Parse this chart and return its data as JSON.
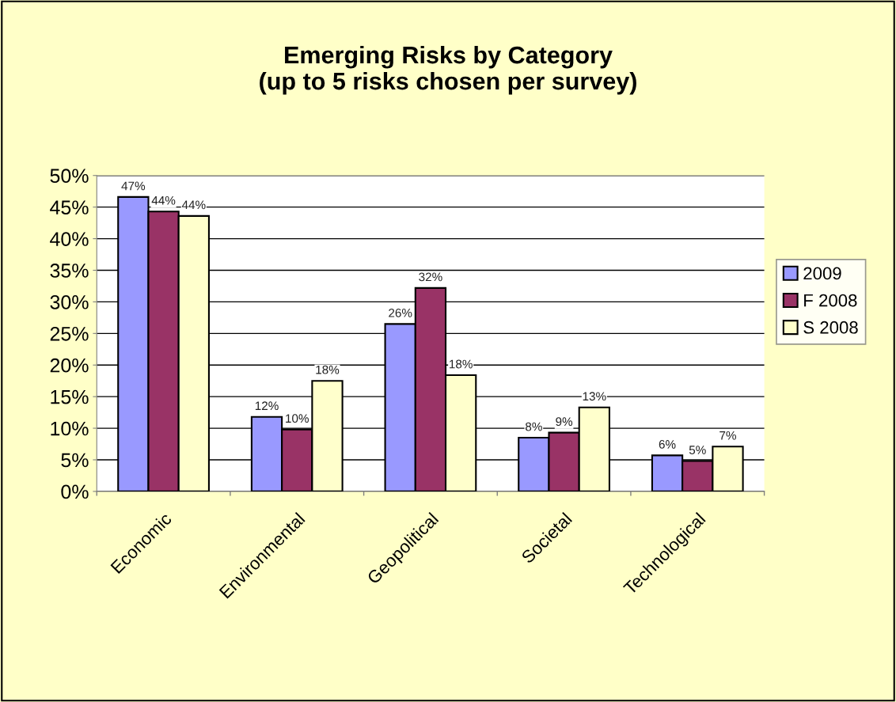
{
  "chart_data": {
    "type": "bar",
    "title": "Emerging Risks by Category\n(up to 5 risks chosen per survey)",
    "categories": [
      "Economic",
      "Environmental",
      "Geopolitical",
      "Societal",
      "Technological"
    ],
    "series": [
      {
        "name": "2009",
        "color": "#9999ff",
        "values": [
          46.6,
          11.8,
          26.5,
          8.5,
          5.7
        ],
        "value_labels": [
          "47%",
          "12%",
          "26%",
          "8%",
          "6%"
        ]
      },
      {
        "name": "F 2008",
        "color": "#993366",
        "values": [
          44.3,
          9.8,
          32.2,
          9.3,
          4.8
        ],
        "value_labels": [
          "44%",
          "10%",
          "32%",
          "9%",
          "5%"
        ]
      },
      {
        "name": "S 2008",
        "color": "#ffffcc",
        "values": [
          43.6,
          17.5,
          18.4,
          13.3,
          7.1
        ],
        "value_labels": [
          "44%",
          "18%",
          "18%",
          "13%",
          "7%"
        ]
      }
    ],
    "ylim": [
      0,
      50
    ],
    "yticks": [
      {
        "value": 0,
        "label": "0%"
      },
      {
        "value": 5,
        "label": "5%"
      },
      {
        "value": 10,
        "label": "10%"
      },
      {
        "value": 15,
        "label": "15%"
      },
      {
        "value": 20,
        "label": "20%"
      },
      {
        "value": 25,
        "label": "25%"
      },
      {
        "value": 30,
        "label": "30%"
      },
      {
        "value": 35,
        "label": "35%"
      },
      {
        "value": 40,
        "label": "40%"
      },
      {
        "value": 45,
        "label": "45%"
      },
      {
        "value": 50,
        "label": "50%"
      }
    ],
    "grid": "y",
    "legend": "right"
  }
}
